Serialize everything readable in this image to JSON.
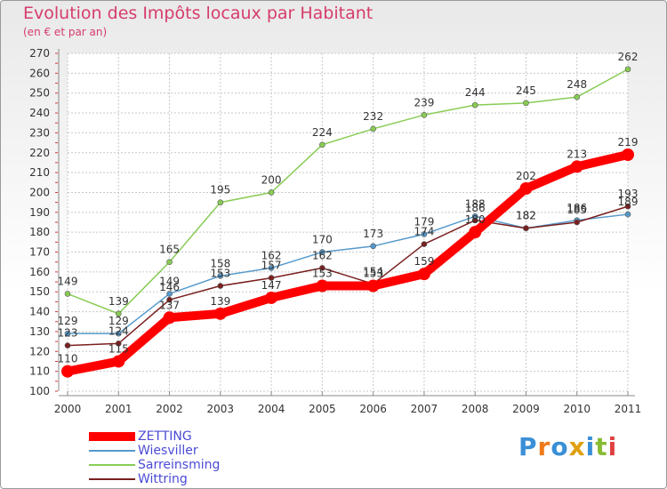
{
  "title": "Evolution des Impôts locaux par Habitant",
  "subtitle": "(en € et par an)",
  "logo_text": "Proxiti",
  "chart_data": {
    "type": "line",
    "title": "Evolution des Impôts locaux par Habitant",
    "subtitle": "(en € et par an)",
    "xlabel": "",
    "ylabel": "",
    "categories": [
      "2000",
      "2001",
      "2002",
      "2003",
      "2004",
      "2005",
      "2006",
      "2007",
      "2008",
      "2009",
      "2010",
      "2011"
    ],
    "ylim": [
      100,
      270
    ],
    "yticks": [
      100,
      110,
      120,
      130,
      140,
      150,
      160,
      170,
      180,
      190,
      200,
      210,
      220,
      230,
      240,
      250,
      260,
      270
    ],
    "grid": true,
    "legend_position": "bottom-left",
    "series": [
      {
        "name": "ZETTING",
        "color": "#ff0000",
        "values": [
          110,
          115,
          137,
          139,
          147,
          153,
          153,
          159,
          180,
          202,
          213,
          219
        ]
      },
      {
        "name": "Wiesviller",
        "color": "#5599cc",
        "values": [
          129,
          129,
          149,
          158,
          162,
          170,
          173,
          179,
          188,
          182,
          186,
          189
        ]
      },
      {
        "name": "Sarreinsming",
        "color": "#88cc55",
        "values": [
          149,
          139,
          165,
          195,
          200,
          224,
          232,
          239,
          244,
          245,
          248,
          262
        ]
      },
      {
        "name": "Wittring",
        "color": "#7a1f1f",
        "values": [
          123,
          124,
          146,
          153,
          157,
          162,
          154,
          174,
          186,
          182,
          185,
          193
        ]
      }
    ]
  }
}
